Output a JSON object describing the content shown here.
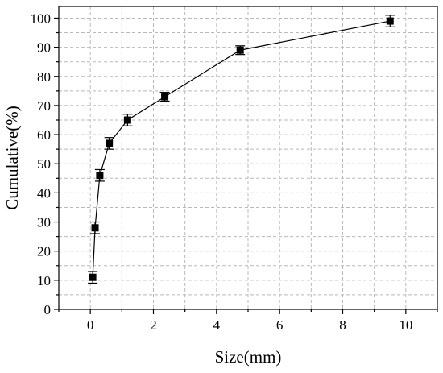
{
  "chart_data": {
    "type": "scatter",
    "title": "",
    "xlabel": "Size(mm)",
    "ylabel": "Cumulative(%)",
    "xlim": [
      -1,
      11
    ],
    "ylim": [
      0,
      104
    ],
    "xticks": [
      0,
      2,
      4,
      6,
      8,
      10
    ],
    "yticks": [
      0,
      10,
      20,
      30,
      40,
      50,
      60,
      70,
      80,
      90,
      100
    ],
    "xtick_labels": [
      "0",
      "2",
      "4",
      "6",
      "8",
      "10"
    ],
    "ytick_labels": [
      "0",
      "10",
      "20",
      "30",
      "40",
      "50",
      "60",
      "70",
      "80",
      "90",
      "100"
    ],
    "grid": true,
    "legend": "none",
    "marker": "square",
    "line": true,
    "series": [
      {
        "x": [
          0.075,
          0.15,
          0.3,
          0.6,
          1.18,
          2.36,
          4.75,
          9.5
        ],
        "y": [
          11,
          28,
          46,
          57,
          65,
          73,
          89,
          99
        ],
        "error": [
          2,
          2,
          2,
          2,
          2,
          1.5,
          1.5,
          2
        ]
      }
    ]
  }
}
